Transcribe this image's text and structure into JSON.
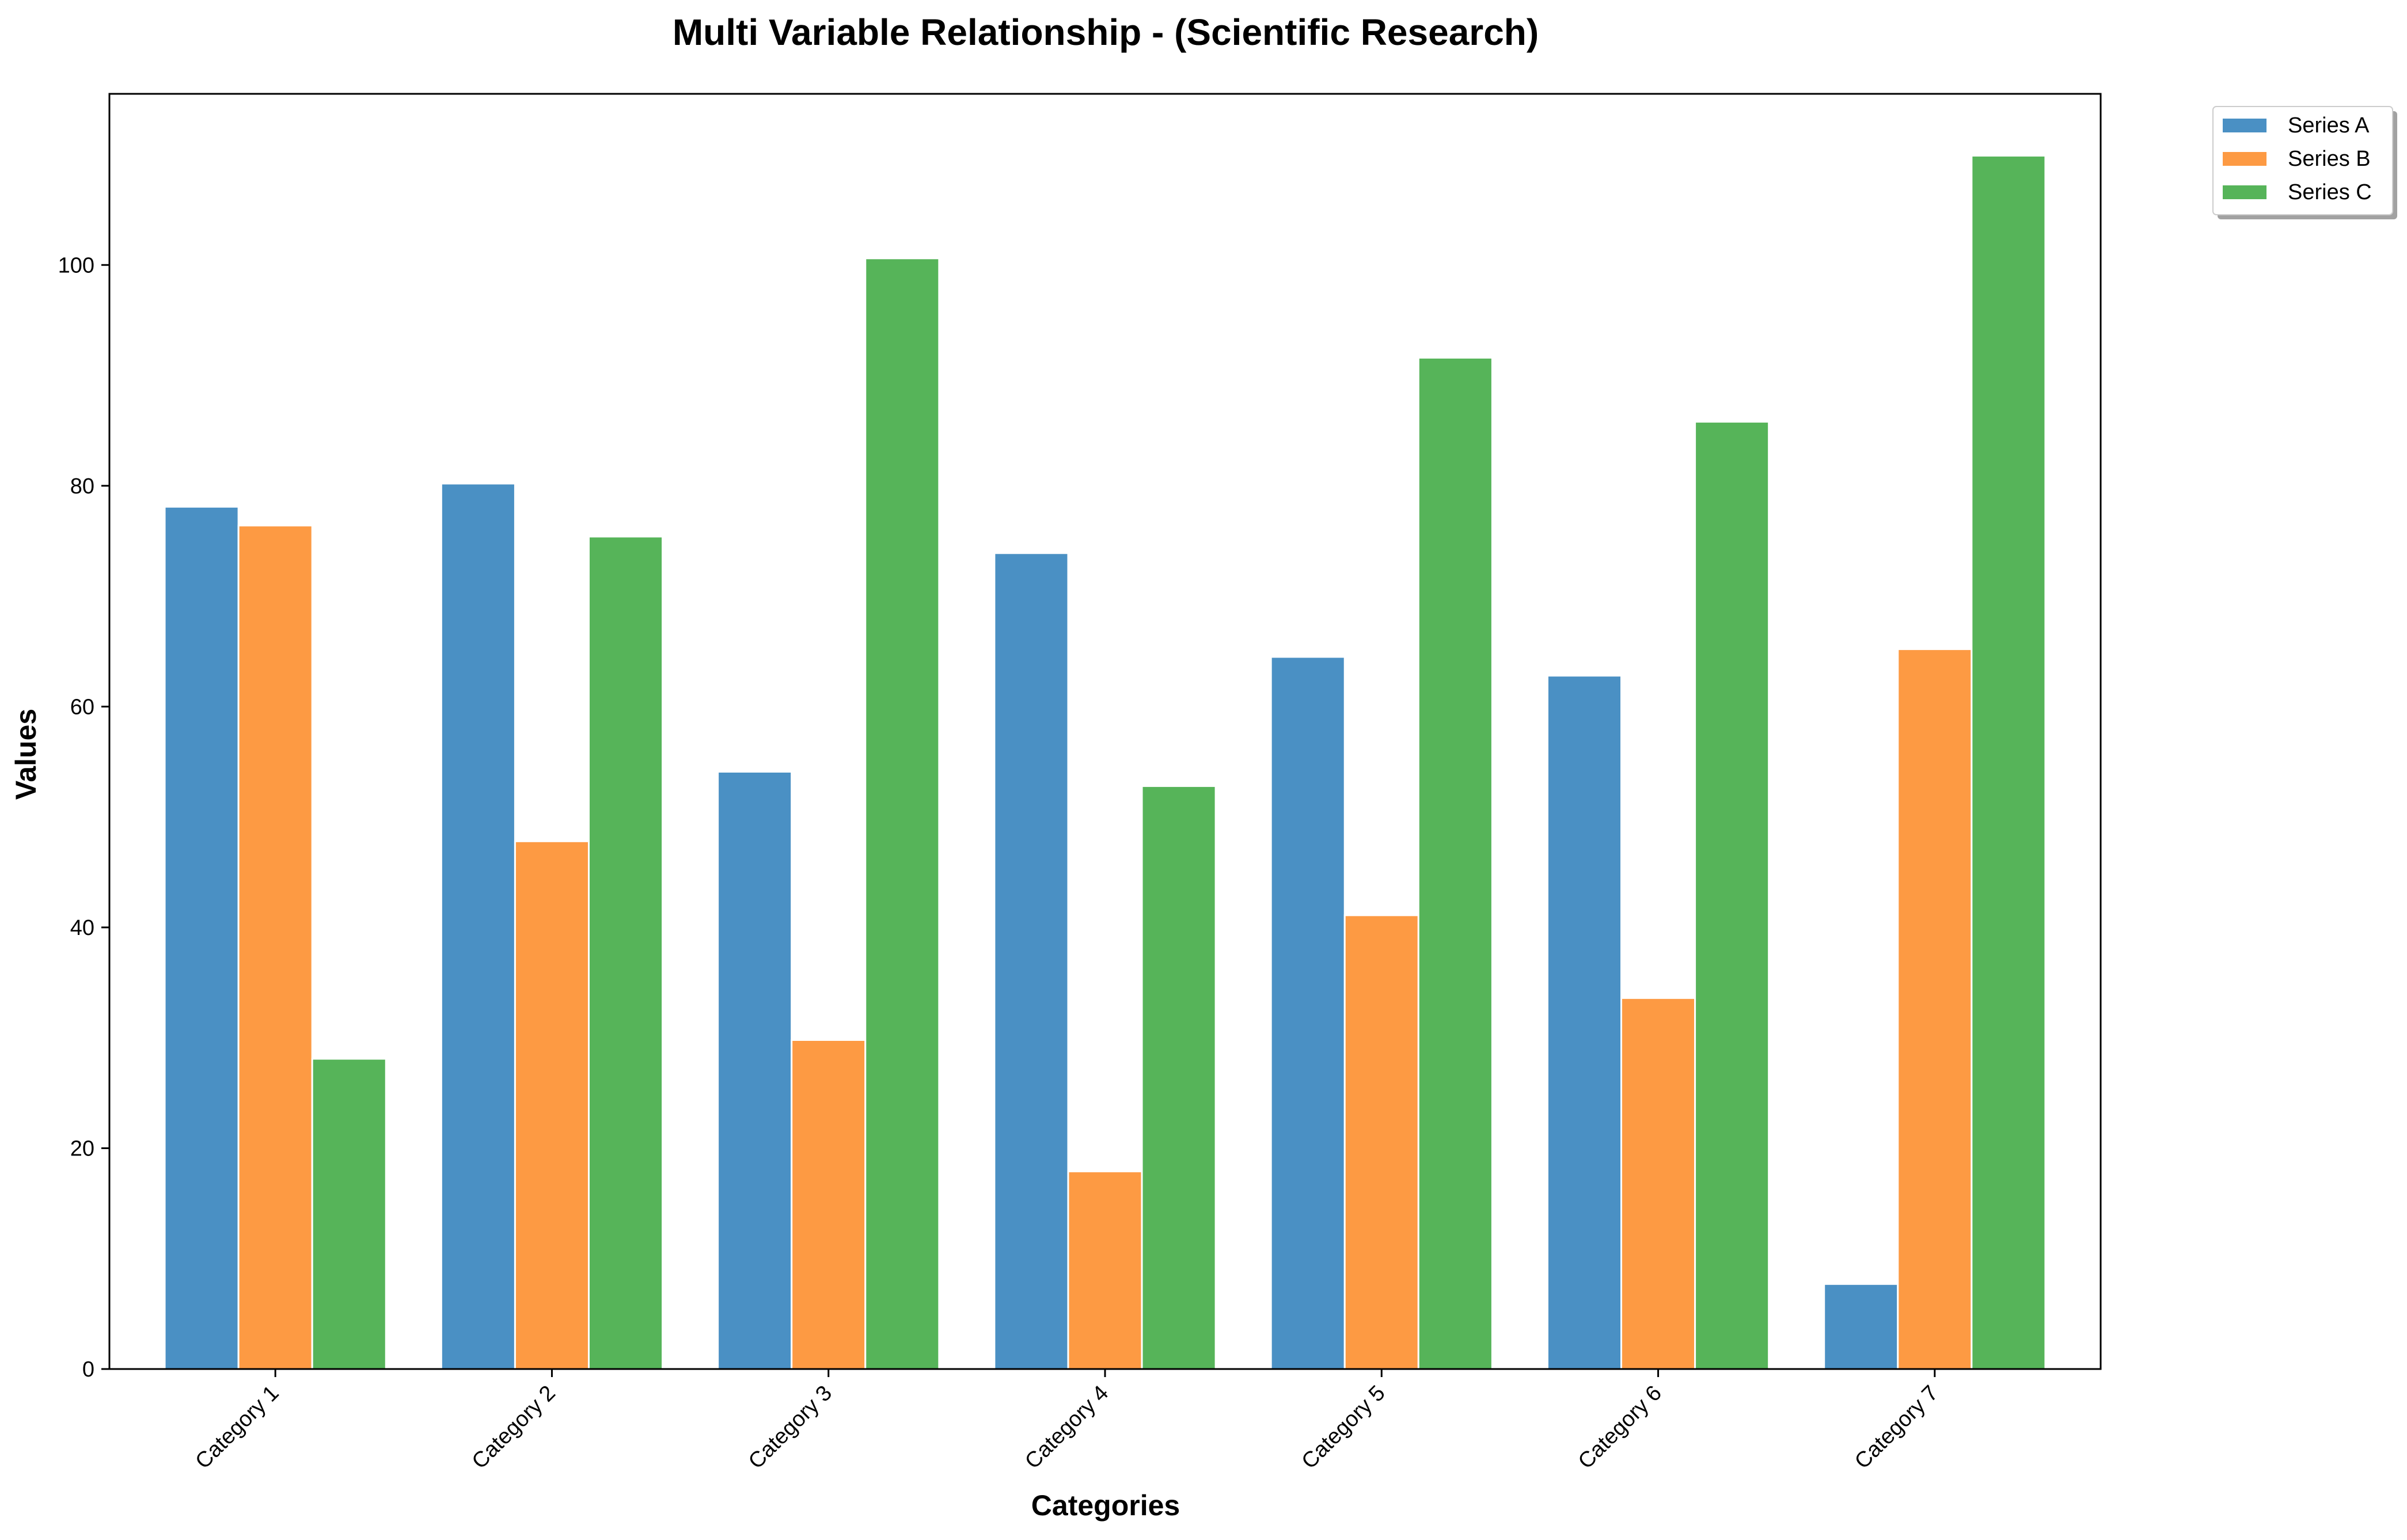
{
  "chart_data": {
    "type": "bar",
    "title": "Multi Variable Relationship - (Scientific Research)",
    "xlabel": "Categories",
    "ylabel": "Values",
    "categories": [
      "Category 1",
      "Category 2",
      "Category 3",
      "Category 4",
      "Category 5",
      "Category 6",
      "Category 7"
    ],
    "series": [
      {
        "name": "Series A",
        "color": "#4a90c4",
        "values": [
          78.1,
          80.2,
          54.1,
          73.9,
          64.5,
          62.8,
          7.7
        ]
      },
      {
        "name": "Series B",
        "color": "#fd9a43",
        "values": [
          76.4,
          47.8,
          29.8,
          17.9,
          41.1,
          33.6,
          65.2
        ]
      },
      {
        "name": "Series C",
        "color": "#56b459",
        "values": [
          28.1,
          75.4,
          100.6,
          52.8,
          91.6,
          85.8,
          109.9
        ]
      }
    ],
    "ylim": [
      0,
      115.5
    ],
    "yticks": [
      0,
      20,
      40,
      60,
      80,
      100
    ],
    "grid": false,
    "legend_position": "outside-top-right"
  }
}
